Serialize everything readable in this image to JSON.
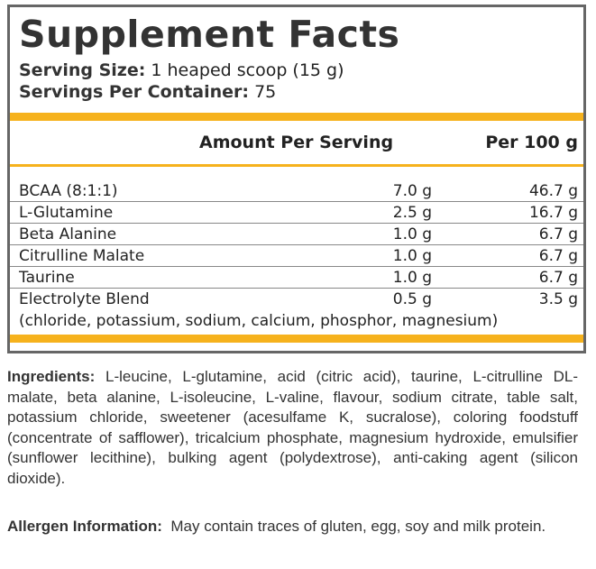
{
  "title": "Supplement Facts",
  "serving": [
    {
      "label": "Serving Size:",
      "value": "1 heaped scoop (15 g)"
    },
    {
      "label": "Servings Per Container:",
      "value": "75"
    }
  ],
  "table": {
    "header": [
      "Amount Per Serving",
      "Per 100 g"
    ],
    "rows": [
      [
        "BCAA (8:1:1)",
        "7.0 g",
        "46.7 g"
      ],
      [
        "L-Glutamine",
        "2.5 g",
        "16.7 g"
      ],
      [
        "Beta Alanine",
        "1.0 g",
        "6.7 g"
      ],
      [
        "Citrulline Malate",
        "1.0 g",
        "6.7 g"
      ],
      [
        "Taurine",
        "1.0 g",
        "6.7 g"
      ],
      [
        "Electrolyte Blend",
        "0.5 g",
        "3.5 g"
      ]
    ],
    "note": "(chloride, potassium, sodium, calcium, phosphor, magnesium)"
  },
  "ingredients": {
    "label": "Ingredients:",
    "text": "L-leucine, L-glutamine, acid (citric acid), taurine, L-citrulline DL-malate, beta alanine, L-isoleucine, L-valine, flavour, sodium citrate, table salt, potassium chloride, sweetener (acesulfame K, sucralose), coloring foodstuff (concentrate of safflower), tricalcium phosphate, magnesium hydroxide, emulsifier (sunflower lecithine), bulking agent (polydextrose), anti-caking agent (silicon dioxide)."
  },
  "allergen": {
    "label": "Allergen Information:",
    "text": "May contain traces of gluten, egg, soy and milk protein."
  }
}
